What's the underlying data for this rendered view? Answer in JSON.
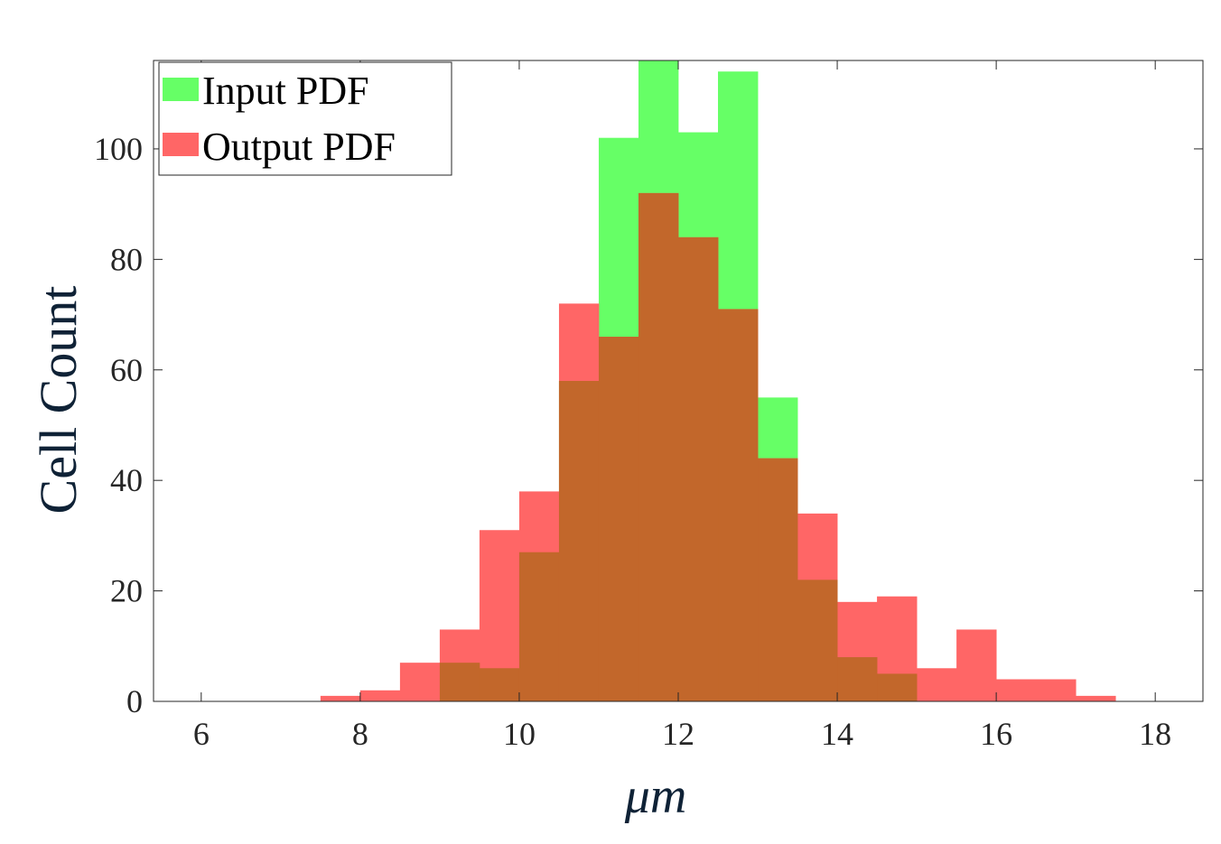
{
  "chart_data": {
    "type": "bar",
    "xlabel": "μm",
    "ylabel": "Cell Count",
    "xlim": [
      5.4,
      18.6
    ],
    "ylim": [
      0,
      116
    ],
    "xticks": [
      6,
      8,
      10,
      12,
      14,
      16,
      18
    ],
    "yticks": [
      0,
      20,
      40,
      60,
      80,
      100
    ],
    "bin_edges": [
      7.5,
      8.0,
      8.5,
      9.0,
      9.5,
      10.0,
      10.5,
      11.0,
      11.5,
      12.0,
      12.5,
      13.0,
      13.5,
      14.0,
      14.5,
      15.0,
      15.5,
      16.0,
      16.5,
      17.0,
      17.5
    ],
    "legend_position": "top-left",
    "series": [
      {
        "name": "Input PDF",
        "color": "#66ff66",
        "values": [
          0,
          0,
          0,
          7,
          6,
          27,
          58,
          102,
          116,
          103,
          114,
          55,
          22,
          8,
          5,
          0,
          0,
          0,
          0,
          0
        ]
      },
      {
        "name": "Output PDF",
        "color": "#ff6666",
        "values": [
          1,
          2,
          7,
          13,
          31,
          38,
          72,
          66,
          92,
          84,
          71,
          44,
          34,
          18,
          19,
          6,
          13,
          4,
          4,
          1
        ]
      }
    ],
    "overlap_color": "#c2672b"
  }
}
